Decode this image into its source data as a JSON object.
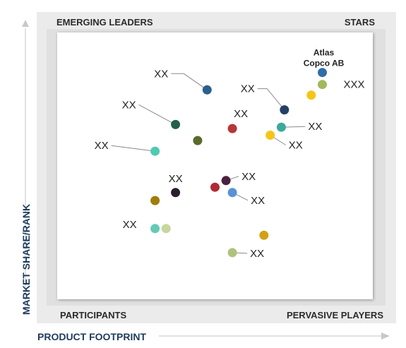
{
  "chart_data": {
    "type": "scatter",
    "xlabel": "PRODUCT FOOTPRINT",
    "ylabel": "MARKET SHARE/RANK",
    "quadrants": {
      "top_left": "EMERGING LEADERS",
      "top_right": "STARS",
      "bottom_left": "PARTICIPANTS",
      "bottom_right": "PERVASIVE PLAYERS"
    },
    "xlim": [
      0,
      100
    ],
    "ylim": [
      0,
      100
    ],
    "grid": false,
    "points": [
      {
        "x": 84.0,
        "y": 85.0,
        "color": "#2f6eaa",
        "label": "Atlas Copco AB"
      },
      {
        "x": 84.0,
        "y": 80.5,
        "color": "#a3b85a",
        "label": "XXX"
      },
      {
        "x": 80.5,
        "y": 76.5,
        "color": "#f5c518",
        "label": ""
      },
      {
        "x": 47.5,
        "y": 78.5,
        "color": "#2b5f8e",
        "label": "XX"
      },
      {
        "x": 72.0,
        "y": 71.0,
        "color": "#243f66",
        "label": "XX"
      },
      {
        "x": 37.5,
        "y": 65.5,
        "color": "#245f4a",
        "label": "XX"
      },
      {
        "x": 55.5,
        "y": 64.0,
        "color": "#b5373a",
        "label": "XX"
      },
      {
        "x": 71.0,
        "y": 64.5,
        "color": "#3ba99c",
        "label": "XX"
      },
      {
        "x": 67.5,
        "y": 61.5,
        "color": "#f5c518",
        "label": "XX"
      },
      {
        "x": 44.5,
        "y": 59.5,
        "color": "#5a6b2a",
        "label": ""
      },
      {
        "x": 31.0,
        "y": 55.5,
        "color": "#4fc9b4",
        "label": "XX"
      },
      {
        "x": 53.5,
        "y": 44.5,
        "color": "#4a2040",
        "label": "XX"
      },
      {
        "x": 50.0,
        "y": 42.0,
        "color": "#b02a35",
        "label": ""
      },
      {
        "x": 55.5,
        "y": 40.0,
        "color": "#5a92d6",
        "label": "XX"
      },
      {
        "x": 37.5,
        "y": 40.0,
        "color": "#2a1e2e",
        "label": "XX"
      },
      {
        "x": 31.0,
        "y": 37.0,
        "color": "#a07c0a",
        "label": ""
      },
      {
        "x": 31.0,
        "y": 26.5,
        "color": "#64c9b8",
        "label": "XX"
      },
      {
        "x": 34.5,
        "y": 26.5,
        "color": "#c6d79c",
        "label": ""
      },
      {
        "x": 65.5,
        "y": 24.0,
        "color": "#d4a017",
        "label": ""
      },
      {
        "x": 55.5,
        "y": 17.5,
        "color": "#b0c27a",
        "label": "XX"
      }
    ]
  }
}
